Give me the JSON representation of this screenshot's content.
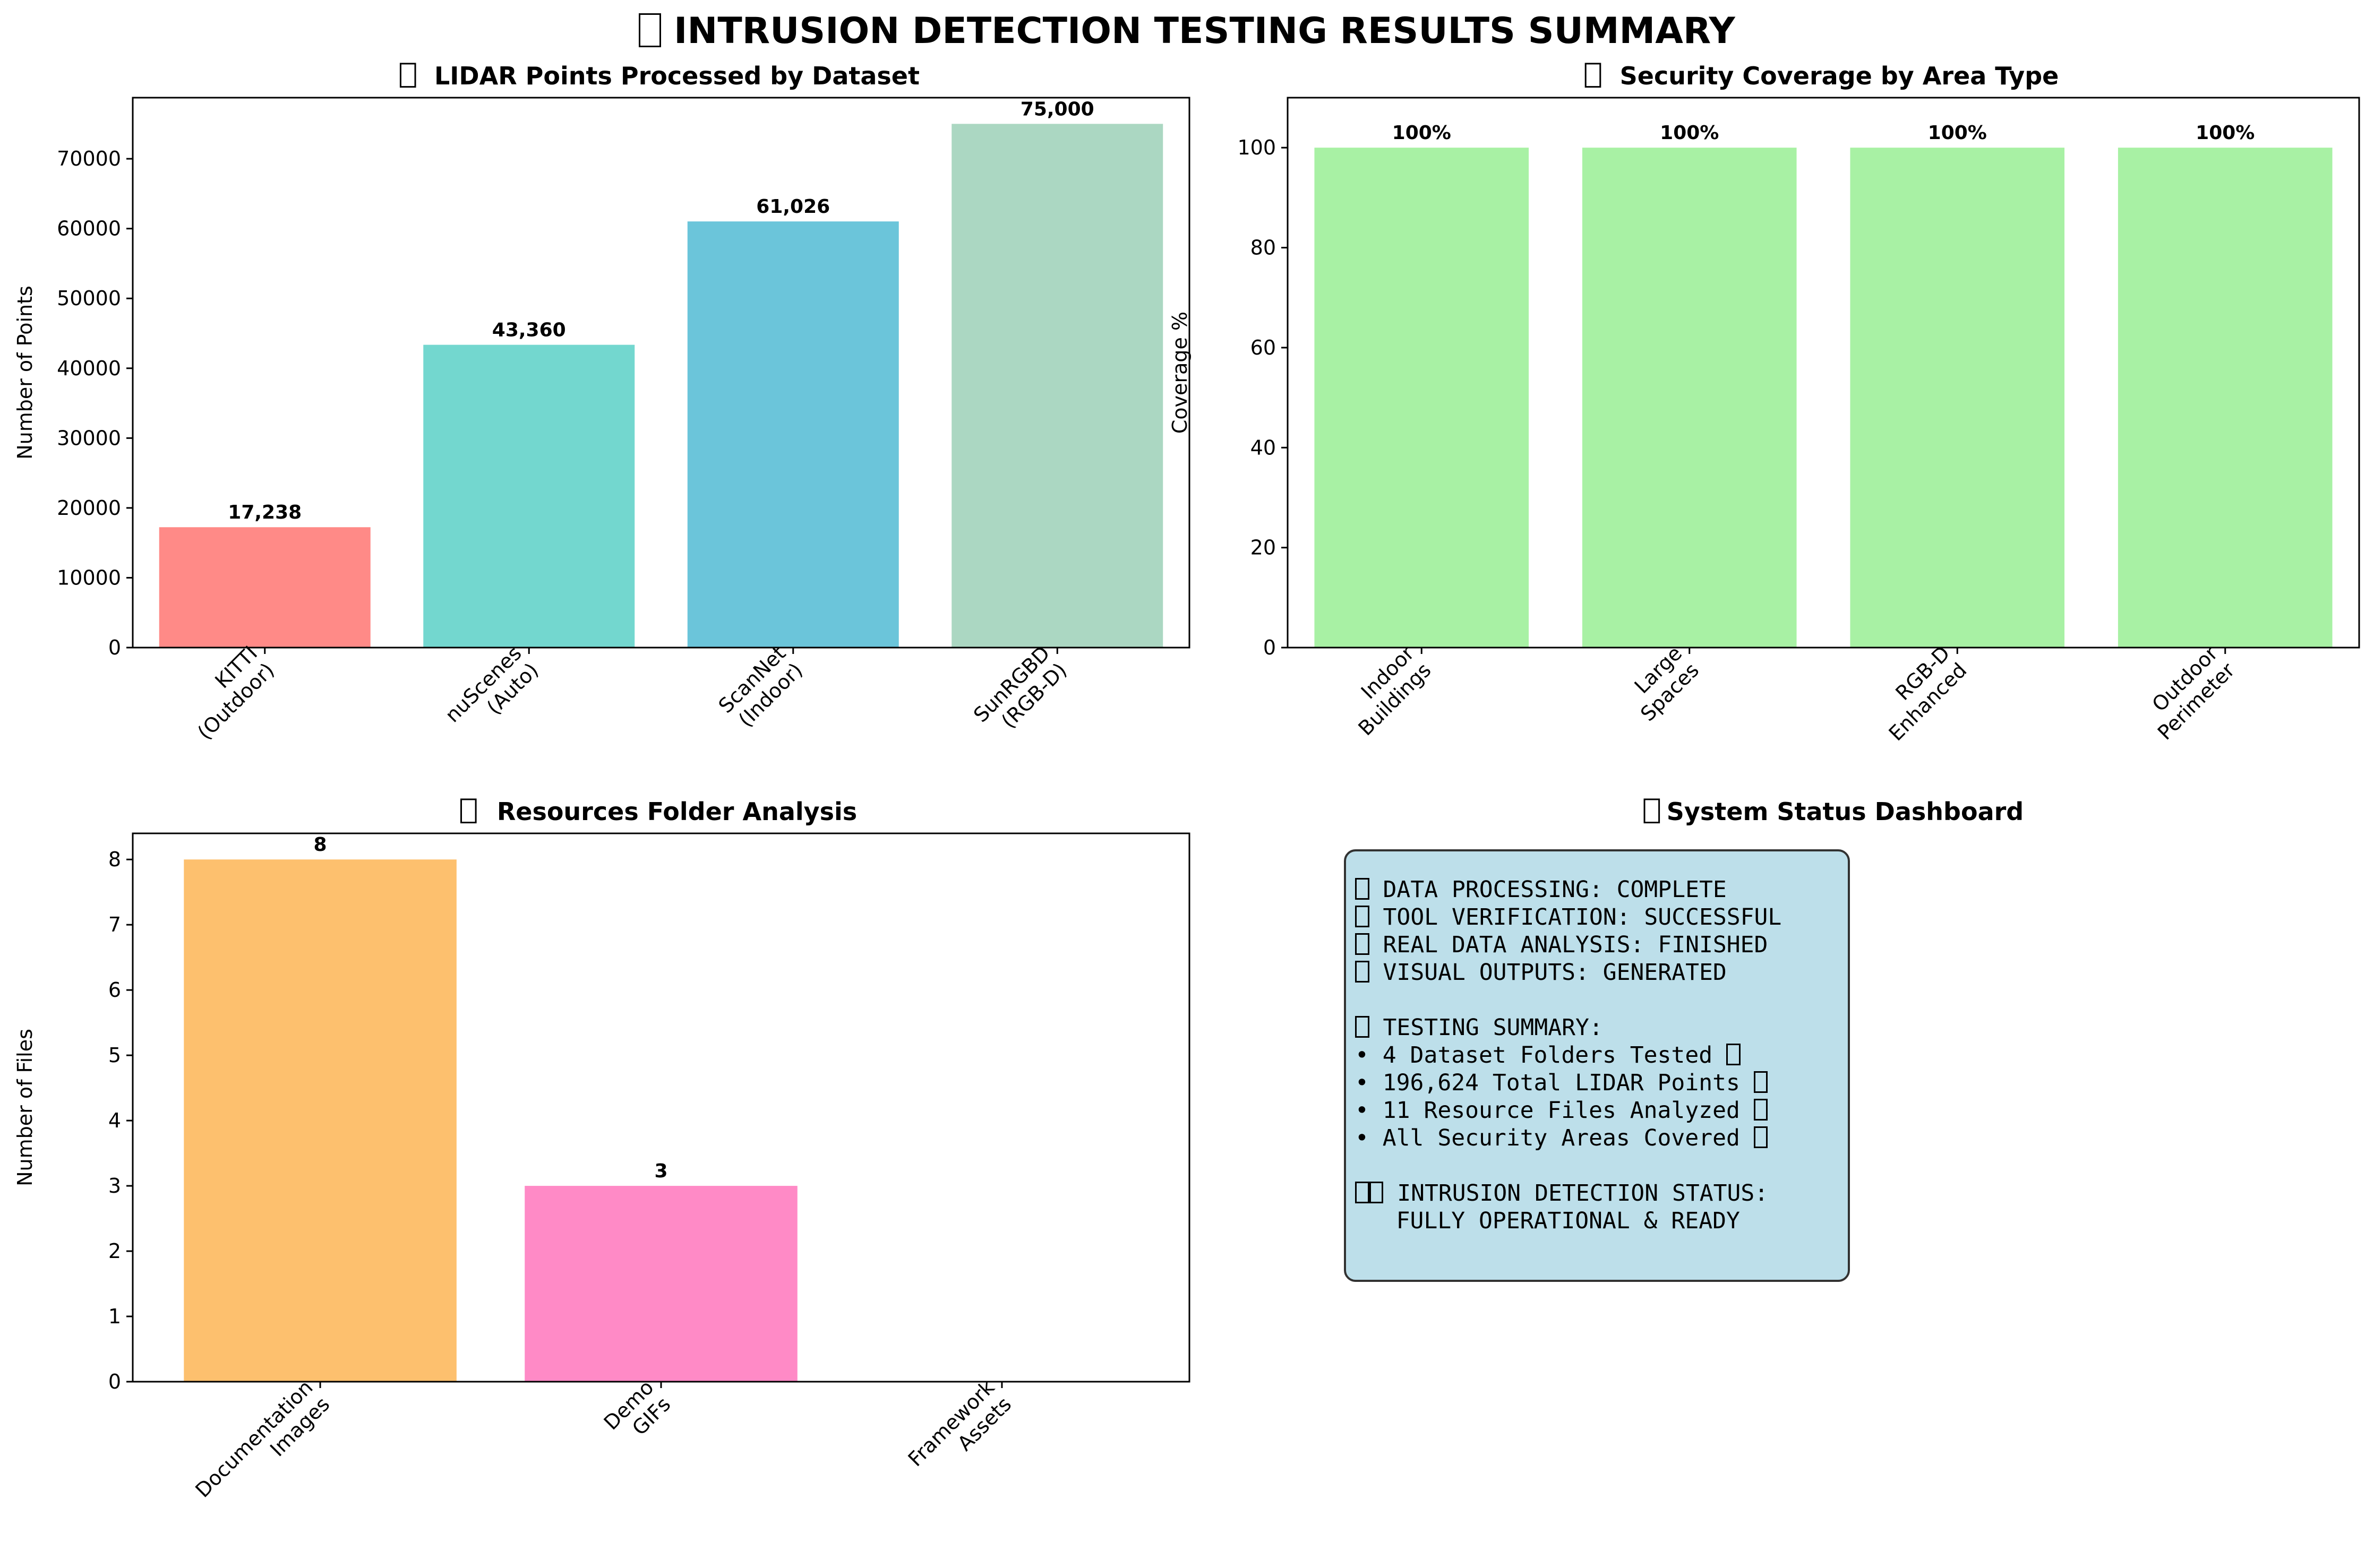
{
  "title": "INTRUSION DETECTION TESTING RESULTS SUMMARY",
  "title_icon": "missing-glyph-box",
  "chart_data": [
    {
      "type": "bar",
      "title": "LIDAR Points Processed by Dataset",
      "title_icon": "missing-glyph-box",
      "categories": [
        "KITTI\n(Outdoor)",
        "nuScenes\n(Auto)",
        "ScanNet\n(Indoor)",
        "SunRGBD\n(RGB-D)"
      ],
      "values": [
        17238,
        43360,
        61026,
        75000
      ],
      "value_labels": [
        "17,238",
        "43,360",
        "61,026",
        "75,000"
      ],
      "colors": [
        "#ff8a87",
        "#73d7cf",
        "#6bc5da",
        "#abd7c2"
      ],
      "xlabel": "",
      "ylabel": "Number of Points",
      "ylim": [
        0,
        78750
      ],
      "yticks": [
        0,
        10000,
        20000,
        30000,
        40000,
        50000,
        60000,
        70000
      ],
      "grid": false
    },
    {
      "type": "bar",
      "title": "Security Coverage by Area Type",
      "title_icon": "missing-glyph-box",
      "categories": [
        "Indoor\nBuildings",
        "Large\nSpaces",
        "RGB-D\nEnhanced",
        "Outdoor\nPerimeter"
      ],
      "values": [
        100,
        100,
        100,
        100
      ],
      "value_labels": [
        "100%",
        "100%",
        "100%",
        "100%"
      ],
      "colors": [
        "#a8f1a4",
        "#a8f1a4",
        "#a8f1a4",
        "#a8f1a4"
      ],
      "xlabel": "",
      "ylabel": "Coverage %",
      "ylim": [
        0,
        110
      ],
      "yticks": [
        0,
        20,
        40,
        60,
        80,
        100
      ],
      "grid": false
    },
    {
      "type": "bar",
      "title": "Resources Folder Analysis",
      "title_icon": "missing-glyph-box",
      "categories": [
        "Documentation\nImages",
        "Demo\nGIFs",
        "Framework\nAssets"
      ],
      "values": [
        8,
        3,
        0
      ],
      "value_labels": [
        "8",
        "3",
        ""
      ],
      "colors": [
        "#fdc06e",
        "#ff8ac6",
        "#a8f1a4"
      ],
      "xlabel": "",
      "ylabel": "Number of Files",
      "ylim": [
        0,
        8.4
      ],
      "yticks": [
        0,
        1,
        2,
        3,
        4,
        5,
        6,
        7,
        8
      ],
      "grid": false
    }
  ],
  "dashboard": {
    "title": "System Status Dashboard",
    "title_icon": "missing-glyph-box",
    "box_color": "#add8e6",
    "lines": [
      "DATA PROCESSING: COMPLETE",
      "TOOL VERIFICATION: SUCCESSFUL",
      "REAL DATA ANALYSIS: FINISHED",
      "VISUAL OUTPUTS: GENERATED",
      "",
      "TESTING SUMMARY:",
      "• 4 Dataset Folders Tested",
      "• 196,624 Total LIDAR Points",
      "• 11 Resource Files Analyzed",
      "• All Security Areas Covered",
      "",
      "INTRUSION DETECTION STATUS:",
      "   FULLY OPERATIONAL & READY"
    ]
  }
}
